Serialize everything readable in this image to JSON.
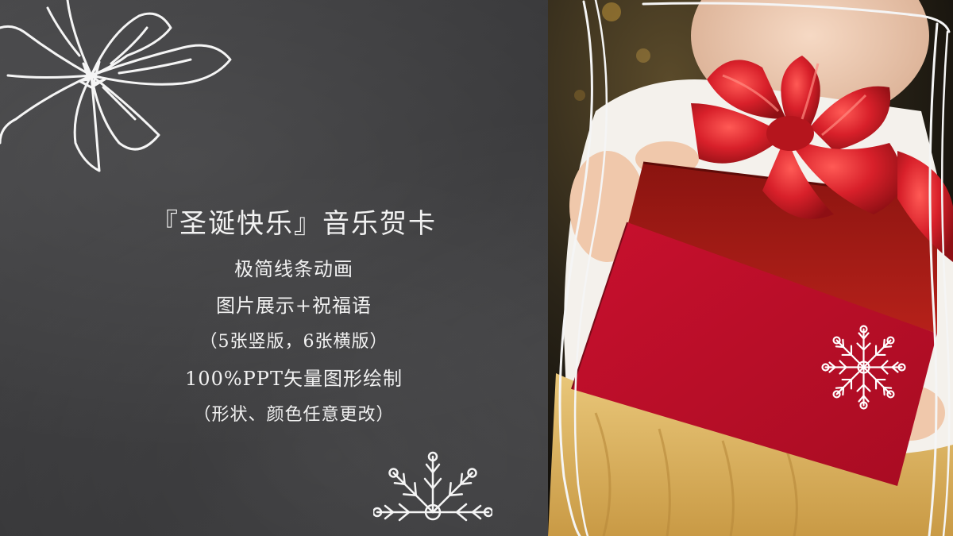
{
  "slide": {
    "title": "『圣诞快乐』音乐贺卡",
    "lines": [
      "极简线条动画",
      "图片展示+祝福语",
      "（5张竖版，6张横版）",
      "100%PPT矢量图形绘制",
      "（形状、颜色任意更改）"
    ]
  },
  "colors": {
    "chalkboard": "#3a3a3c",
    "chalk": "#f2f2f2",
    "gift_red": "#c8102e",
    "ribbon_red": "#d8202a"
  },
  "decorations": {
    "top_left": "poinsettia-line-icon",
    "bottom_center": "snowflake-icon",
    "photo_overlay": "snowflake-icon",
    "photo_frame": "chalk-frame"
  }
}
